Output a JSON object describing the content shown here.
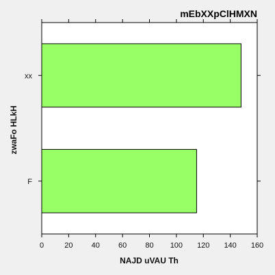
{
  "chart_data": {
    "type": "bar",
    "orientation": "horizontal",
    "title": "mEbXXpClHMXN",
    "xlabel": "NAJD uVAU Th",
    "ylabel": "zwaFo HLkH",
    "categories": [
      "xx",
      "F"
    ],
    "values": [
      148,
      115
    ],
    "xlim": [
      0,
      160
    ],
    "xticks": [
      0,
      20,
      40,
      60,
      80,
      100,
      120,
      140,
      160
    ],
    "grid": false,
    "colors": {
      "bar": "#99ff66",
      "bar_edge": "#000000",
      "plot_bg": "#ffffff",
      "page_bg": "#f0f0f0"
    }
  }
}
